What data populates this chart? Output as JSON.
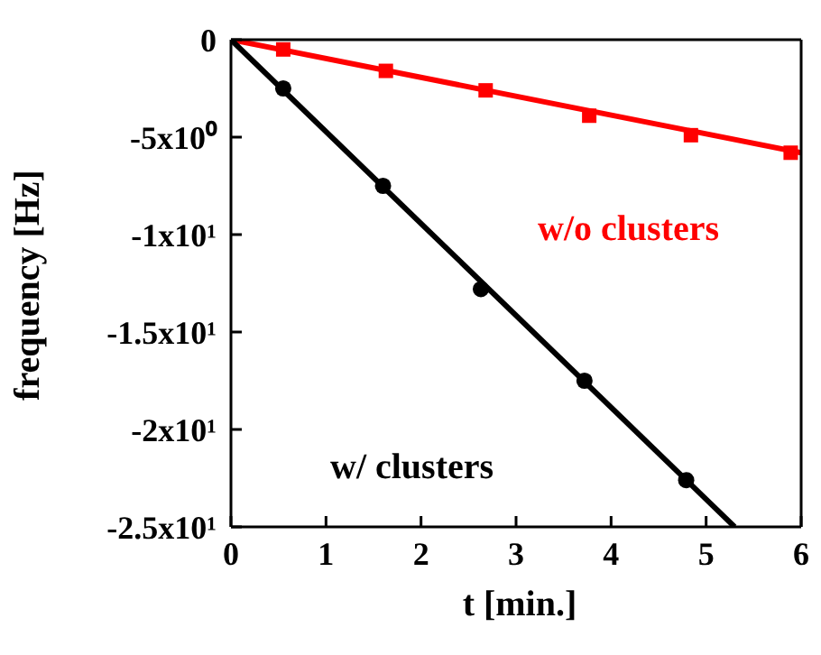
{
  "chart_data": {
    "type": "scatter",
    "xlabel": "t [min.]",
    "ylabel": "frequency [Hz]",
    "xlim": [
      0,
      6
    ],
    "ylim": [
      -25,
      0
    ],
    "xticks": [
      0,
      1,
      2,
      3,
      4,
      5,
      6
    ],
    "yticks": [
      {
        "value": 0,
        "label": "0"
      },
      {
        "value": -5,
        "label": "-5x10⁰"
      },
      {
        "value": -10,
        "label": "-1x10¹"
      },
      {
        "value": -15,
        "label": "-1.5x10¹"
      },
      {
        "value": -20,
        "label": "-2x10¹"
      },
      {
        "value": -25,
        "label": "-2.5x10¹"
      }
    ],
    "series": [
      {
        "type": "line",
        "color": "#ff0000",
        "marker": "none",
        "x": [
          0,
          6
        ],
        "values": [
          0,
          -5.8
        ]
      },
      {
        "type": "line",
        "color": "#000000",
        "marker": "none",
        "x": [
          0,
          5.3
        ],
        "values": [
          0,
          -25
        ]
      },
      {
        "name": "w/o clusters",
        "color": "#ff0000",
        "marker": "square",
        "x": [
          0.55,
          1.63,
          2.68,
          3.77,
          4.84,
          5.89
        ],
        "values": [
          -0.5,
          -1.6,
          -2.6,
          -3.9,
          -4.9,
          -5.8
        ]
      },
      {
        "name": "w/ clusters",
        "color": "#000000",
        "marker": "circle",
        "x": [
          0.55,
          1.6,
          2.63,
          3.72,
          4.79
        ],
        "values": [
          -2.5,
          -7.5,
          -12.8,
          -17.5,
          -22.6
        ]
      }
    ]
  }
}
